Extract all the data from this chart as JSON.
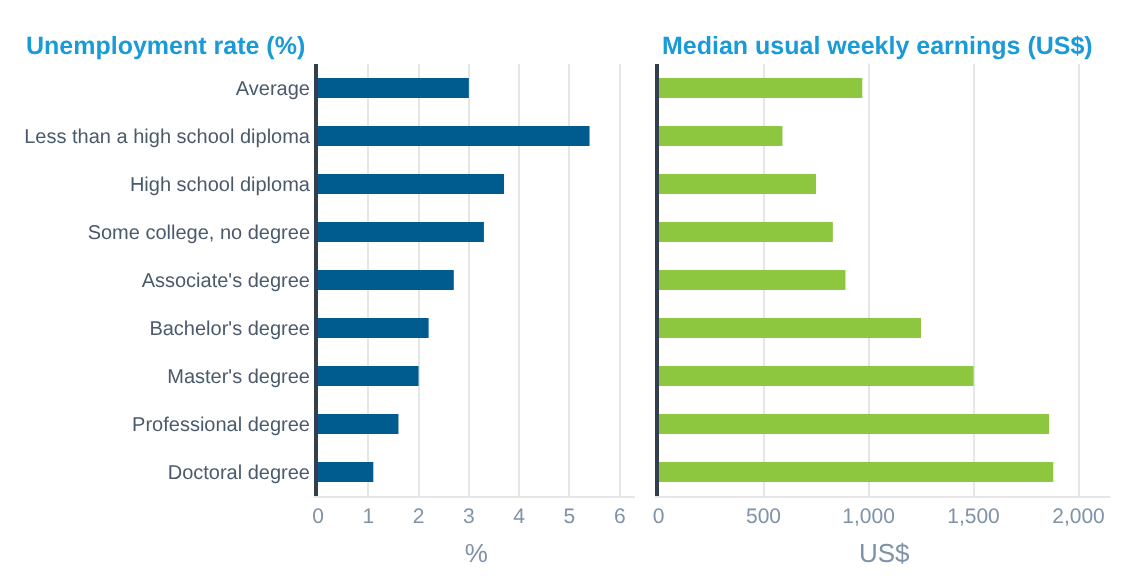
{
  "chart_data": [
    {
      "type": "bar",
      "orientation": "horizontal",
      "title": "Unemployment rate (%)",
      "xlabel": "%",
      "categories": [
        "Average",
        "Less than a high school diploma",
        "High school diploma",
        "Some college, no degree",
        "Associate's degree",
        "Bachelor's degree",
        "Master's degree",
        "Professional degree",
        "Doctoral degree"
      ],
      "values": [
        3.0,
        5.4,
        3.7,
        3.3,
        2.7,
        2.2,
        2.0,
        1.6,
        1.1
      ],
      "color": "#005b8f",
      "xlim": [
        0,
        6.3
      ],
      "xticks": [
        0,
        1,
        2,
        3,
        4,
        5,
        6
      ],
      "grid": "x"
    },
    {
      "type": "bar",
      "orientation": "horizontal",
      "title": "Median usual weekly earnings (US$)",
      "xlabel": "US$",
      "categories": [
        null,
        null,
        null,
        null,
        null,
        null,
        null,
        null,
        null
      ],
      "values": [
        970,
        590,
        750,
        830,
        890,
        1250,
        1500,
        1860,
        1880
      ],
      "color": "#8dc63f",
      "xlim": [
        0,
        2150
      ],
      "xticks": [
        0,
        500,
        {
          "value": 1000,
          "label": "1,000"
        },
        {
          "value": 1500,
          "label": "1,500"
        },
        {
          "value": 2000,
          "label": "2,000"
        }
      ],
      "grid": "x",
      "tick_labels": "x"
    }
  ]
}
